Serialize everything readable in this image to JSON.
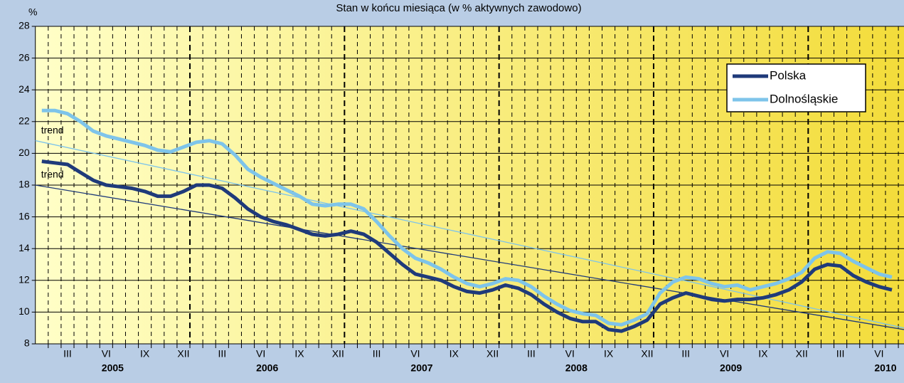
{
  "chart_data": {
    "type": "line",
    "title": "Stan w końcu miesiąca (w % aktywnych zawodowo)",
    "y_unit": "%",
    "categories": [
      null,
      null,
      "III",
      null,
      null,
      "VI",
      null,
      null,
      "IX",
      null,
      null,
      "XII",
      null,
      null,
      "III",
      null,
      null,
      "VI",
      null,
      null,
      "IX",
      null,
      null,
      "XII",
      null,
      null,
      "III",
      null,
      null,
      "VI",
      null,
      null,
      "IX",
      null,
      null,
      "XII",
      null,
      null,
      "III",
      null,
      null,
      "VI",
      null,
      null,
      "IX",
      null,
      null,
      "XII",
      null,
      null,
      "III",
      null,
      null,
      "VI",
      null,
      null,
      "IX",
      null,
      null,
      "XII",
      null,
      null,
      "III",
      null,
      null,
      "VI",
      null
    ],
    "year_labels": [
      "2005",
      "2006",
      "2007",
      "2008",
      "2009",
      "2010"
    ],
    "series": [
      {
        "name": "Polska",
        "color": "#1f3a7a",
        "values": [
          19.5,
          19.4,
          19.3,
          18.8,
          18.3,
          18.0,
          17.9,
          17.8,
          17.6,
          17.3,
          17.3,
          17.6,
          18.0,
          18.0,
          17.8,
          17.2,
          16.5,
          16.0,
          15.7,
          15.5,
          15.2,
          14.9,
          14.8,
          14.9,
          15.1,
          14.9,
          14.4,
          13.7,
          13.0,
          12.4,
          12.2,
          12.0,
          11.6,
          11.3,
          11.2,
          11.4,
          11.7,
          11.5,
          11.1,
          10.5,
          10.0,
          9.6,
          9.4,
          9.4,
          8.9,
          8.8,
          9.1,
          9.5,
          10.5,
          10.9,
          11.2,
          11.0,
          10.8,
          10.7,
          10.8,
          10.8,
          10.9,
          11.1,
          11.4,
          11.9,
          12.7,
          13.0,
          12.9,
          12.3,
          11.9,
          11.6,
          11.4
        ]
      },
      {
        "name": "Dolnośląskie",
        "color": "#7ec4ea",
        "values": [
          22.7,
          22.7,
          22.5,
          22.0,
          21.4,
          21.1,
          20.9,
          20.7,
          20.5,
          20.2,
          20.1,
          20.4,
          20.7,
          20.8,
          20.6,
          19.9,
          19.0,
          18.5,
          18.1,
          17.7,
          17.3,
          16.8,
          16.7,
          16.8,
          16.8,
          16.5,
          15.7,
          14.8,
          14.0,
          13.4,
          13.1,
          12.7,
          12.2,
          11.8,
          11.6,
          11.8,
          12.1,
          12.0,
          11.6,
          11.0,
          10.5,
          10.1,
          9.9,
          9.8,
          9.3,
          9.2,
          9.5,
          9.9,
          11.2,
          11.9,
          12.2,
          12.1,
          11.8,
          11.6,
          11.7,
          11.4,
          11.6,
          11.8,
          12.1,
          12.5,
          13.4,
          13.8,
          13.7,
          13.2,
          12.8,
          12.4,
          12.2
        ]
      }
    ],
    "trends": [
      {
        "label": "trend",
        "color": "#1f3a7a",
        "values": [
          18.0,
          8.9
        ]
      },
      {
        "label": "trend",
        "color": "#7ec4ea",
        "values": [
          20.8,
          9.0
        ]
      }
    ],
    "ylim": [
      8,
      28
    ],
    "yticks": [
      8,
      10,
      12,
      14,
      16,
      18,
      20,
      22,
      24,
      26,
      28
    ],
    "grid": true,
    "legend": "upper right"
  }
}
